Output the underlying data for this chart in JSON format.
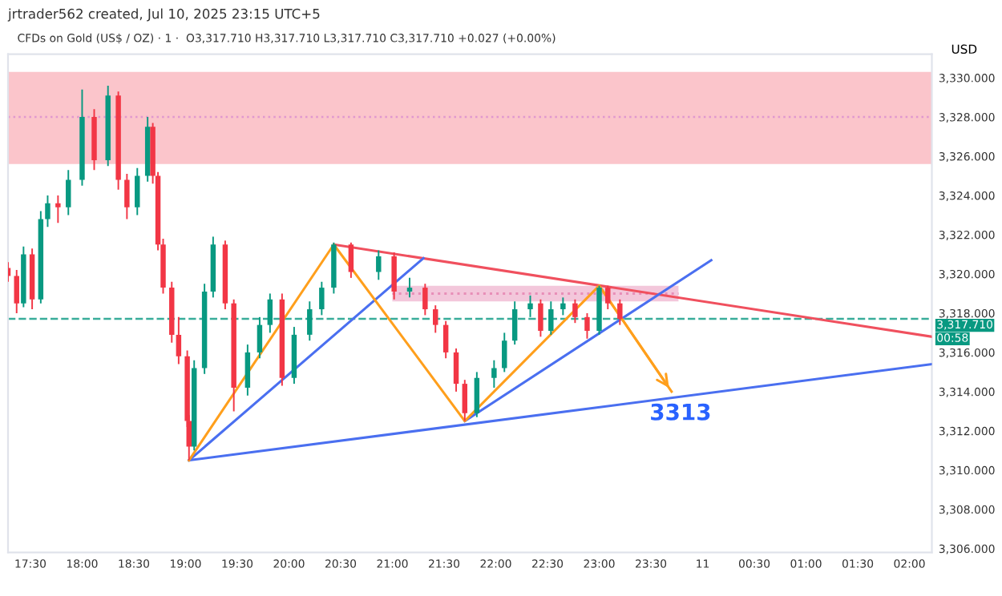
{
  "chart_data": {
    "type": "candlestick",
    "title": "jrtrader562 created, Jul 10, 2025 23:15 UTC+5",
    "subtitle": "CFDs on Gold (US$ / OZ) · 1 ·  O3,317.710 H3,317.710 L3,317.710 C3,317.710 +0.027 (+0.00%)",
    "ylabel": "USD",
    "x": [
      "2025-07-10T17:17",
      "2025-07-10T17:22",
      "2025-07-10T17:26",
      "2025-07-10T17:31",
      "2025-07-10T17:36",
      "2025-07-10T17:40",
      "2025-07-10T17:46",
      "2025-07-10T17:52",
      "2025-07-10T18:00",
      "2025-07-10T18:07",
      "2025-07-10T18:15",
      "2025-07-10T18:21",
      "2025-07-10T18:26",
      "2025-07-10T18:32",
      "2025-07-10T18:38",
      "2025-07-10T18:41",
      "2025-07-10T18:44",
      "2025-07-10T18:47",
      "2025-07-10T18:52",
      "2025-07-10T18:56",
      "2025-07-10T19:01",
      "2025-07-10T19:02",
      "2025-07-10T19:05",
      "2025-07-10T19:11",
      "2025-07-10T19:16",
      "2025-07-10T19:23",
      "2025-07-10T19:28",
      "2025-07-10T19:36",
      "2025-07-10T19:43",
      "2025-07-10T19:49",
      "2025-07-10T19:56",
      "2025-07-10T20:03",
      "2025-07-10T20:12",
      "2025-07-10T20:19",
      "2025-07-10T20:26",
      "2025-07-10T20:36",
      "2025-07-10T20:52",
      "2025-07-10T21:01",
      "2025-07-10T21:10",
      "2025-07-10T21:19",
      "2025-07-10T21:25",
      "2025-07-10T21:31",
      "2025-07-10T21:37",
      "2025-07-10T21:42",
      "2025-07-10T21:49",
      "2025-07-10T21:59",
      "2025-07-10T22:05",
      "2025-07-10T22:11",
      "2025-07-10T22:20",
      "2025-07-10T22:26",
      "2025-07-10T22:32",
      "2025-07-10T22:39",
      "2025-07-10T22:46",
      "2025-07-10T22:53",
      "2025-07-10T23:00",
      "2025-07-10T23:05",
      "2025-07-10T23:12"
    ],
    "ohlc": [
      [
        3320.3,
        3320.6,
        3319.6,
        3319.9
      ],
      [
        3319.9,
        3320.2,
        3318.0,
        3318.5
      ],
      [
        3318.5,
        3321.4,
        3318.3,
        3321.0
      ],
      [
        3321.0,
        3321.3,
        3318.2,
        3318.7
      ],
      [
        3318.7,
        3323.2,
        3318.5,
        3322.8
      ],
      [
        3322.8,
        3324.0,
        3322.4,
        3323.6
      ],
      [
        3323.6,
        3324.0,
        3322.6,
        3323.4
      ],
      [
        3323.4,
        3325.3,
        3323.0,
        3324.8
      ],
      [
        3324.8,
        3329.4,
        3324.5,
        3328.0
      ],
      [
        3328.0,
        3328.4,
        3325.3,
        3325.8
      ],
      [
        3325.8,
        3329.6,
        3325.5,
        3329.1
      ],
      [
        3329.1,
        3329.3,
        3324.3,
        3324.8
      ],
      [
        3324.8,
        3325.1,
        3322.8,
        3323.4
      ],
      [
        3323.4,
        3325.4,
        3323.0,
        3325.0
      ],
      [
        3325.0,
        3328.0,
        3324.7,
        3327.5
      ],
      [
        3327.5,
        3327.7,
        3324.6,
        3325.0
      ],
      [
        3325.0,
        3325.2,
        3321.2,
        3321.5
      ],
      [
        3321.5,
        3321.8,
        3319.0,
        3319.3
      ],
      [
        3319.3,
        3319.6,
        3316.5,
        3316.9
      ],
      [
        3316.9,
        3317.8,
        3315.4,
        3315.8
      ],
      [
        3315.8,
        3316.1,
        3312.2,
        3312.5
      ],
      [
        3312.5,
        3312.8,
        3310.5,
        3311.2
      ],
      [
        3311.2,
        3315.6,
        3311.0,
        3315.2
      ],
      [
        3315.2,
        3319.5,
        3314.9,
        3319.1
      ],
      [
        3319.1,
        3321.9,
        3318.8,
        3321.5
      ],
      [
        3321.5,
        3321.7,
        3318.2,
        3318.5
      ],
      [
        3318.5,
        3318.7,
        3313.0,
        3314.2
      ],
      [
        3314.2,
        3316.4,
        3313.8,
        3316.0
      ],
      [
        3316.0,
        3317.8,
        3315.7,
        3317.4
      ],
      [
        3317.4,
        3319.0,
        3317.0,
        3318.7
      ],
      [
        3318.7,
        3319.0,
        3314.3,
        3314.7
      ],
      [
        3314.7,
        3317.3,
        3314.4,
        3316.9
      ],
      [
        3316.9,
        3318.6,
        3316.6,
        3318.2
      ],
      [
        3318.2,
        3319.6,
        3317.9,
        3319.3
      ],
      [
        3319.3,
        3321.6,
        3319.0,
        3321.5
      ],
      [
        3321.5,
        3321.6,
        3319.8,
        3320.1
      ],
      [
        3320.1,
        3321.2,
        3319.7,
        3320.9
      ],
      [
        3320.9,
        3321.1,
        3318.7,
        3319.1
      ],
      [
        3319.1,
        3319.8,
        3318.8,
        3319.3
      ],
      [
        3319.3,
        3319.5,
        3317.9,
        3318.2
      ],
      [
        3318.2,
        3318.4,
        3317.0,
        3317.4
      ],
      [
        3317.4,
        3317.6,
        3315.7,
        3316.0
      ],
      [
        3316.0,
        3316.2,
        3314.0,
        3314.4
      ],
      [
        3314.4,
        3314.6,
        3312.5,
        3312.9
      ],
      [
        3312.9,
        3315.0,
        3312.7,
        3314.7
      ],
      [
        3314.7,
        3315.6,
        3314.2,
        3315.2
      ],
      [
        3315.2,
        3317.0,
        3315.0,
        3316.6
      ],
      [
        3316.6,
        3318.6,
        3316.4,
        3318.2
      ],
      [
        3318.2,
        3318.9,
        3317.8,
        3318.5
      ],
      [
        3318.5,
        3318.7,
        3316.8,
        3317.1
      ],
      [
        3317.1,
        3318.6,
        3316.9,
        3318.2
      ],
      [
        3318.2,
        3318.8,
        3317.9,
        3318.5
      ],
      [
        3318.5,
        3318.7,
        3317.5,
        3317.8
      ],
      [
        3317.8,
        3318.0,
        3316.7,
        3317.1
      ],
      [
        3317.1,
        3319.4,
        3316.9,
        3319.3
      ],
      [
        3319.3,
        3319.4,
        3318.2,
        3318.5
      ],
      [
        3318.5,
        3318.7,
        3317.4,
        3317.71
      ]
    ],
    "colors": [
      "#f23645",
      "#f23645",
      "#089981",
      "#f23645",
      "#089981",
      "#089981",
      "#f23645",
      "#089981",
      "#089981",
      "#f23645",
      "#089981",
      "#f23645",
      "#f23645",
      "#089981",
      "#089981",
      "#f23645",
      "#f23645",
      "#f23645",
      "#f23645",
      "#f23645",
      "#f23645",
      "#f23645",
      "#089981",
      "#089981",
      "#089981",
      "#f23645",
      "#f23645",
      "#089981",
      "#089981",
      "#089981",
      "#f23645",
      "#089981",
      "#089981",
      "#089981",
      "#089981",
      "#f23645",
      "#089981",
      "#f23645",
      "#089981",
      "#f23645",
      "#f23645",
      "#f23645",
      "#f23645",
      "#f23645",
      "#089981",
      "#089981",
      "#089981",
      "#089981",
      "#089981",
      "#f23645",
      "#089981",
      "#089981",
      "#f23645",
      "#f23645",
      "#089981",
      "#f23645",
      "#f23645"
    ],
    "series": [
      {
        "type": "line",
        "color": "#e88fb8",
        "line_style": "dotted",
        "x": [
          "2025-07-10T21:00",
          "2025-07-10T23:46"
        ],
        "values": [
          3319.0,
          3319.0
        ],
        "lower": [
          3318.6,
          3318.6
        ],
        "upper": [
          3319.4,
          3319.4
        ]
      },
      {
        "type": "line",
        "color": "#f0505e",
        "x": [
          "2025-07-10T20:26",
          "2025-07-11T02:13"
        ],
        "values": [
          3321.5,
          3316.8
        ]
      },
      {
        "type": "line",
        "color": "#4a6ff0",
        "x": [
          "2025-07-10T19:02",
          "2025-07-11T02:13"
        ],
        "values": [
          3310.5,
          3315.4
        ]
      },
      {
        "type": "line",
        "color": "#4a6ff0",
        "x": [
          "2025-07-10T19:02",
          "2025-07-10T21:18"
        ],
        "values": [
          3310.5,
          3320.8
        ]
      },
      {
        "type": "line",
        "color": "#4a6ff0",
        "x": [
          "2025-07-10T21:42",
          "2025-07-11T00:05"
        ],
        "values": [
          3312.5,
          3320.7
        ]
      },
      {
        "type": "line",
        "color": "#ff9f1c",
        "x": [
          "2025-07-10T19:02",
          "2025-07-10T20:26",
          "2025-07-10T21:42",
          "2025-07-10T23:00",
          "2025-07-10T23:42"
        ],
        "values": [
          3310.5,
          3321.5,
          3312.5,
          3319.4,
          3314.0
        ]
      }
    ],
    "bands": [
      {
        "axis": "y",
        "from": 3325.6,
        "to": 3330.3,
        "color": "#fbc5cb"
      }
    ],
    "ref_lines": [
      {
        "axis": "y",
        "value": 3328.0,
        "color": "#d98cd0",
        "line_style": "dotted"
      },
      {
        "axis": "y",
        "value": 3317.71,
        "label": "3,317.710",
        "color": "#089981",
        "line_style": "dashed"
      }
    ],
    "annotations": [
      {
        "text": "3313",
        "x": "2025-07-10T23:42",
        "y": 3314.0
      },
      "00:58"
    ],
    "xlim": [
      "2025-07-10T17:17",
      "2025-07-11T02:13"
    ],
    "xticks": [
      {
        "value": "2025-07-10T17:30",
        "label": "17:30"
      },
      {
        "value": "2025-07-10T18:00",
        "label": "18:00"
      },
      {
        "value": "2025-07-10T18:30",
        "label": "18:30"
      },
      {
        "value": "2025-07-10T19:00",
        "label": "19:00"
      },
      {
        "value": "2025-07-10T19:30",
        "label": "19:30"
      },
      {
        "value": "2025-07-10T20:00",
        "label": "20:00"
      },
      {
        "value": "2025-07-10T20:30",
        "label": "20:30"
      },
      {
        "value": "2025-07-10T21:00",
        "label": "21:00"
      },
      {
        "value": "2025-07-10T21:30",
        "label": "21:30"
      },
      {
        "value": "2025-07-10T22:00",
        "label": "22:00"
      },
      {
        "value": "2025-07-10T22:30",
        "label": "22:30"
      },
      {
        "value": "2025-07-10T23:00",
        "label": "23:00"
      },
      {
        "value": "2025-07-10T23:30",
        "label": "23:30"
      },
      {
        "value": "2025-07-11T00:00",
        "label": "11"
      },
      {
        "value": "2025-07-11T00:30",
        "label": "00:30"
      },
      {
        "value": "2025-07-11T01:00",
        "label": "01:00"
      },
      {
        "value": "2025-07-11T01:30",
        "label": "01:30"
      },
      {
        "value": "2025-07-11T02:00",
        "label": "02:00"
      }
    ],
    "ylim": [
      3305.8,
      3331.2
    ],
    "yticks": [
      {
        "value": 3306,
        "label": "3,306.000"
      },
      {
        "value": 3308,
        "label": "3,308.000"
      },
      {
        "value": 3310,
        "label": "3,310.000"
      },
      {
        "value": 3312,
        "label": "3,312.000"
      },
      {
        "value": 3314,
        "label": "3,314.000"
      },
      {
        "value": 3316,
        "label": "3,316.000"
      },
      {
        "value": 3318,
        "label": "3,318.000"
      },
      {
        "value": 3320,
        "label": "3,320.000"
      },
      {
        "value": 3322,
        "label": "3,322.000"
      },
      {
        "value": 3324,
        "label": "3,324.000"
      },
      {
        "value": 3326,
        "label": "3,326.000"
      },
      {
        "value": 3328,
        "label": "3,328.000"
      },
      {
        "value": 3330,
        "label": "3,330.000"
      }
    ],
    "grid": false,
    "legend": false,
    "marker": "none"
  }
}
